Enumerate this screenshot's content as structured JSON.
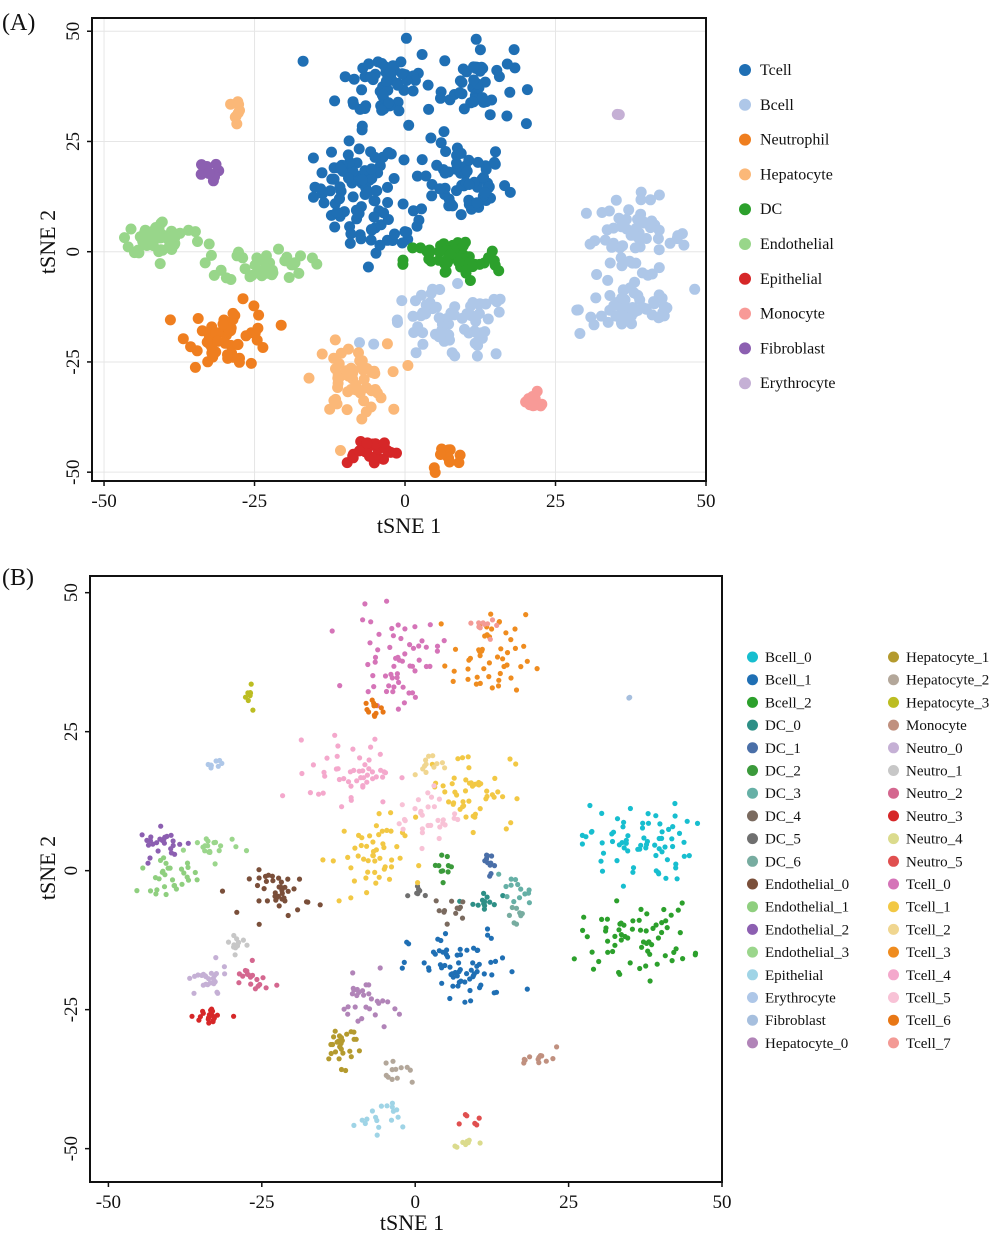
{
  "chart_data": [
    {
      "panel_label": "(A)",
      "type": "scatter",
      "title": "",
      "xlabel": "tSNE 1",
      "ylabel": "tSNE 2",
      "xlim": [
        -52,
        50
      ],
      "ylim": [
        -52,
        53
      ],
      "xticks": [
        "-50",
        "-25",
        "0",
        "25",
        "50"
      ],
      "yticks": [
        "-50",
        "-25",
        "0",
        "25",
        "50"
      ],
      "xtick_values": [
        -50,
        -25,
        0,
        25,
        50
      ],
      "ytick_values": [
        -50,
        -25,
        0,
        25,
        50
      ],
      "grid": true,
      "legend_position": "right",
      "series": [
        {
          "name": "Tcell",
          "color": "#1f6fb4",
          "clusters": [
            {
              "cx": -8,
              "cy": 15,
              "rx": 7,
              "ry": 10,
              "n": 70
            },
            {
              "cx": 9,
              "cy": 16,
              "rx": 8,
              "ry": 9,
              "n": 65
            },
            {
              "cx": -3,
              "cy": 38,
              "rx": 8,
              "ry": 9,
              "n": 60
            },
            {
              "cx": 12,
              "cy": 38,
              "rx": 6,
              "ry": 9,
              "n": 45
            },
            {
              "cx": -3,
              "cy": 5,
              "rx": 6,
              "ry": 5,
              "n": 25
            }
          ]
        },
        {
          "name": "Bcell",
          "color": "#aec7e8",
          "clusters": [
            {
              "cx": 38,
              "cy": 3,
              "rx": 9,
              "ry": 9,
              "n": 60
            },
            {
              "cx": 38,
              "cy": -13,
              "rx": 9,
              "ry": 6,
              "n": 50
            },
            {
              "cx": 7,
              "cy": -17,
              "rx": 11,
              "ry": 8,
              "n": 70
            }
          ]
        },
        {
          "name": "Neutrophil",
          "color": "#ef7e1f",
          "clusters": [
            {
              "cx": -29,
              "cy": -19,
              "rx": 7,
              "ry": 7,
              "n": 55
            },
            {
              "cx": 7,
              "cy": -47,
              "rx": 3,
              "ry": 3,
              "n": 12
            }
          ]
        },
        {
          "name": "Hepatocyte",
          "color": "#fbb878",
          "clusters": [
            {
              "cx": -28,
              "cy": 32,
              "rx": 1.5,
              "ry": 2.5,
              "n": 8
            },
            {
              "cx": -9,
              "cy": -29,
              "rx": 6,
              "ry": 8,
              "n": 55
            }
          ]
        },
        {
          "name": "DC",
          "color": "#2ca02c",
          "clusters": [
            {
              "cx": 8,
              "cy": -2,
              "rx": 8,
              "ry": 5,
              "n": 55
            }
          ]
        },
        {
          "name": "Endothelial",
          "color": "#98d68a",
          "clusters": [
            {
              "cx": -40,
              "cy": 3,
              "rx": 7,
              "ry": 4,
              "n": 50
            },
            {
              "cx": -23,
              "cy": -3,
              "rx": 7,
              "ry": 4,
              "n": 40
            }
          ]
        },
        {
          "name": "Epithelial",
          "color": "#d62728",
          "clusters": [
            {
              "cx": -6,
              "cy": -45,
              "rx": 5,
              "ry": 3,
              "n": 25
            }
          ]
        },
        {
          "name": "Monocyte",
          "color": "#f89a97",
          "clusters": [
            {
              "cx": 21,
              "cy": -34,
              "rx": 3,
              "ry": 2,
              "n": 12
            }
          ]
        },
        {
          "name": "Fibroblast",
          "color": "#8c5fb1",
          "clusters": [
            {
              "cx": -33,
              "cy": 18,
              "rx": 2,
              "ry": 2,
              "n": 10
            }
          ]
        },
        {
          "name": "Erythrocyte",
          "color": "#c5b0d5",
          "clusters": [
            {
              "cx": 35,
              "cy": 31,
              "rx": 0.5,
              "ry": 0.5,
              "n": 2
            }
          ]
        }
      ]
    },
    {
      "panel_label": "(B)",
      "type": "scatter",
      "title": "",
      "xlabel": "tSNE 1",
      "ylabel": "tSNE 2",
      "xlim": [
        -53,
        50
      ],
      "ylim": [
        -56,
        53
      ],
      "xticks": [
        "-50",
        "-25",
        "0",
        "25",
        "50"
      ],
      "yticks": [
        "-50",
        "-25",
        "0",
        "25",
        "50"
      ],
      "xtick_values": [
        -50,
        -25,
        0,
        25,
        50
      ],
      "ytick_values": [
        -50,
        -25,
        0,
        25,
        50
      ],
      "grid": false,
      "legend_position": "right",
      "series": [
        {
          "name": "Bcell_0",
          "color": "#17becf",
          "clusters": [
            {
              "cx": 36,
              "cy": 5,
              "rx": 9,
              "ry": 7,
              "n": 70
            }
          ]
        },
        {
          "name": "Bcell_1",
          "color": "#1f6fb4",
          "clusters": [
            {
              "cx": 8,
              "cy": -18,
              "rx": 9,
              "ry": 7,
              "n": 70
            }
          ]
        },
        {
          "name": "Bcell_2",
          "color": "#2ca02c",
          "clusters": [
            {
              "cx": 36,
              "cy": -12,
              "rx": 9,
              "ry": 6,
              "n": 65
            }
          ]
        },
        {
          "name": "DC_0",
          "color": "#2d8f86",
          "clusters": [
            {
              "cx": 11,
              "cy": -6,
              "rx": 2.5,
              "ry": 2.5,
              "n": 14
            }
          ]
        },
        {
          "name": "DC_1",
          "color": "#4a6fa8",
          "clusters": [
            {
              "cx": 12,
              "cy": 2,
              "rx": 2,
              "ry": 2.5,
              "n": 12
            }
          ]
        },
        {
          "name": "DC_2",
          "color": "#3b9a3b",
          "clusters": [
            {
              "cx": 5,
              "cy": 1,
              "rx": 2,
              "ry": 2,
              "n": 10
            }
          ]
        },
        {
          "name": "DC_3",
          "color": "#66b0a6",
          "clusters": [
            {
              "cx": 16,
              "cy": -4,
              "rx": 3,
              "ry": 3,
              "n": 14
            }
          ]
        },
        {
          "name": "DC_4",
          "color": "#7a6a5f",
          "clusters": [
            {
              "cx": 6,
              "cy": -7,
              "rx": 3,
              "ry": 2,
              "n": 12
            }
          ]
        },
        {
          "name": "DC_5",
          "color": "#6f6f6f",
          "clusters": [
            {
              "cx": 1,
              "cy": -4,
              "rx": 2,
              "ry": 2,
              "n": 8
            }
          ]
        },
        {
          "name": "DC_6",
          "color": "#77aca0",
          "clusters": [
            {
              "cx": 17,
              "cy": -8,
              "rx": 2,
              "ry": 2,
              "n": 8
            }
          ]
        },
        {
          "name": "Endothelial_0",
          "color": "#7a4f3a",
          "clusters": [
            {
              "cx": -22,
              "cy": -4,
              "rx": 5,
              "ry": 4,
              "n": 40
            }
          ]
        },
        {
          "name": "Endothelial_1",
          "color": "#8fcf7f",
          "clusters": [
            {
              "cx": -40,
              "cy": -1,
              "rx": 5,
              "ry": 3,
              "n": 30
            }
          ]
        },
        {
          "name": "Endothelial_2",
          "color": "#8c5fb1",
          "clusters": [
            {
              "cx": -41,
              "cy": 5,
              "rx": 4,
              "ry": 2.5,
              "n": 25
            }
          ]
        },
        {
          "name": "Endothelial_3",
          "color": "#9bd68c",
          "clusters": [
            {
              "cx": -33,
              "cy": 4,
              "rx": 4,
              "ry": 2.5,
              "n": 20
            }
          ]
        },
        {
          "name": "Epithelial",
          "color": "#9fd4e6",
          "clusters": [
            {
              "cx": -6,
              "cy": -44,
              "rx": 4,
              "ry": 3,
              "n": 18
            }
          ]
        },
        {
          "name": "Erythrocyte",
          "color": "#aec7e8",
          "clusters": [
            {
              "cx": -33,
              "cy": 19,
              "rx": 1.5,
              "ry": 1.5,
              "n": 8
            }
          ]
        },
        {
          "name": "Fibroblast",
          "color": "#a6bfde",
          "clusters": [
            {
              "cx": 35,
              "cy": 31,
              "rx": 0.5,
              "ry": 0.5,
              "n": 2
            }
          ]
        },
        {
          "name": "Hepatocyte_0",
          "color": "#b184b8",
          "clusters": [
            {
              "cx": -8,
              "cy": -24,
              "rx": 4,
              "ry": 5,
              "n": 30
            }
          ]
        },
        {
          "name": "Hepatocyte_1",
          "color": "#b49a2e",
          "clusters": [
            {
              "cx": -12,
              "cy": -31,
              "rx": 3.5,
              "ry": 4,
              "n": 28
            }
          ]
        },
        {
          "name": "Hepatocyte_2",
          "color": "#b3a79a",
          "clusters": [
            {
              "cx": -3,
              "cy": -37,
              "rx": 3,
              "ry": 2,
              "n": 12
            }
          ]
        },
        {
          "name": "Hepatocyte_3",
          "color": "#bcbd22",
          "clusters": [
            {
              "cx": -27,
              "cy": 32,
              "rx": 1,
              "ry": 2.5,
              "n": 8
            }
          ]
        },
        {
          "name": "Monocyte",
          "color": "#c0907f",
          "clusters": [
            {
              "cx": 21,
              "cy": -34,
              "rx": 2.5,
              "ry": 2,
              "n": 12
            }
          ]
        },
        {
          "name": "Neutro_0",
          "color": "#c5b0d5",
          "clusters": [
            {
              "cx": -34,
              "cy": -20,
              "rx": 3.5,
              "ry": 3,
              "n": 25
            }
          ]
        },
        {
          "name": "Neutro_1",
          "color": "#c7c7c7",
          "clusters": [
            {
              "cx": -29,
              "cy": -13,
              "rx": 2,
              "ry": 2,
              "n": 12
            }
          ]
        },
        {
          "name": "Neutro_2",
          "color": "#d4678f",
          "clusters": [
            {
              "cx": -27,
              "cy": -20,
              "rx": 3,
              "ry": 3,
              "n": 18
            }
          ]
        },
        {
          "name": "Neutro_3",
          "color": "#d62728",
          "clusters": [
            {
              "cx": -33,
              "cy": -26,
              "rx": 3,
              "ry": 2,
              "n": 18
            }
          ]
        },
        {
          "name": "Neutro_4",
          "color": "#dbdb8d",
          "clusters": [
            {
              "cx": 8,
              "cy": -49,
              "rx": 2.5,
              "ry": 1.2,
              "n": 8
            }
          ]
        },
        {
          "name": "Neutro_5",
          "color": "#e04f4f",
          "clusters": [
            {
              "cx": 9,
              "cy": -45,
              "rx": 1.5,
              "ry": 1.2,
              "n": 6
            }
          ]
        },
        {
          "name": "Tcell_0",
          "color": "#d574b8",
          "clusters": [
            {
              "cx": -3,
              "cy": 38,
              "rx": 7,
              "ry": 8,
              "n": 60
            }
          ]
        },
        {
          "name": "Tcell_1",
          "color": "#f2c844",
          "clusters": [
            {
              "cx": 9,
              "cy": 15,
              "rx": 7,
              "ry": 7,
              "n": 50
            },
            {
              "cx": -8,
              "cy": 2,
              "rx": 6,
              "ry": 8,
              "n": 50
            }
          ]
        },
        {
          "name": "Tcell_2",
          "color": "#f0d690",
          "clusters": [
            {
              "cx": 2,
              "cy": 18,
              "rx": 3,
              "ry": 3,
              "n": 12
            }
          ]
        },
        {
          "name": "Tcell_3",
          "color": "#ef8c1f",
          "clusters": [
            {
              "cx": 12,
              "cy": 38,
              "rx": 6,
              "ry": 8,
              "n": 50
            }
          ]
        },
        {
          "name": "Tcell_4",
          "color": "#f4a8cc",
          "clusters": [
            {
              "cx": -10,
              "cy": 18,
              "rx": 7,
              "ry": 6,
              "n": 50
            }
          ]
        },
        {
          "name": "Tcell_5",
          "color": "#f8c2d6",
          "clusters": [
            {
              "cx": 2,
              "cy": 10,
              "rx": 5,
              "ry": 5,
              "n": 30
            }
          ]
        },
        {
          "name": "Tcell_6",
          "color": "#e87715",
          "clusters": [
            {
              "cx": -7,
              "cy": 29,
              "rx": 2,
              "ry": 2.5,
              "n": 12
            }
          ]
        },
        {
          "name": "Tcell_7",
          "color": "#f39a95",
          "clusters": [
            {
              "cx": 13,
              "cy": 44,
              "rx": 3,
              "ry": 2,
              "n": 10
            }
          ]
        }
      ]
    }
  ]
}
